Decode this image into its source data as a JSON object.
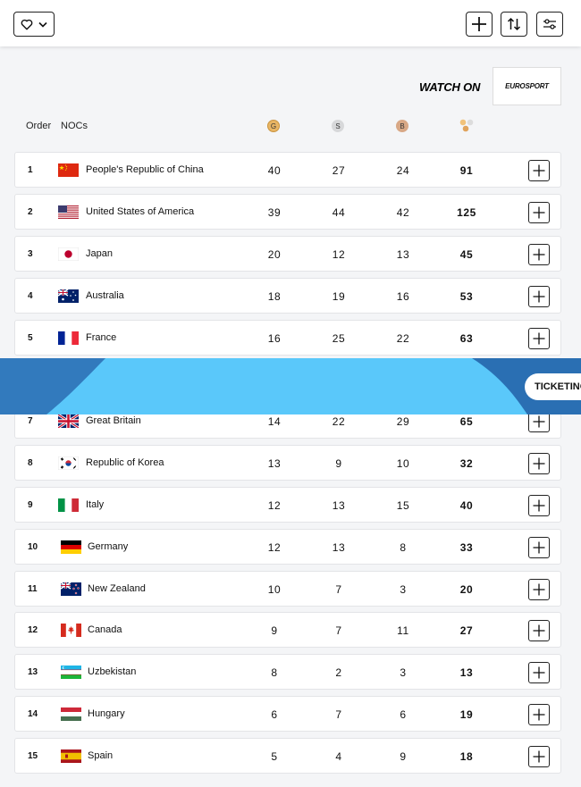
{
  "toolbar": {
    "favorite_icon": "heart-icon",
    "dropdown_icon": "chevron-down-icon",
    "add_icon": "plus-icon",
    "sort_icon": "sort-icon",
    "filter_icon": "sliders-icon"
  },
  "watch_on": {
    "label": "WATCH ON",
    "partner": "EUROSPORT"
  },
  "table_header": {
    "order": "Order",
    "nocs": "NOCs",
    "gold": "G",
    "silver": "S",
    "bronze": "B"
  },
  "banner": {
    "ticketing": "TICKETING"
  },
  "colors": {
    "gold": "#e8b564",
    "silver": "#d7d8da",
    "bronze": "#d8a886",
    "banner_light": "#5ac8fa",
    "banner_dark": "#2a6fb3"
  },
  "rows": [
    {
      "order": "1",
      "name": "People's Republic of China",
      "gold": "40",
      "silver": "27",
      "bronze": "24",
      "total": "91",
      "flag": "cn"
    },
    {
      "order": "2",
      "name": "United States of America",
      "gold": "39",
      "silver": "44",
      "bronze": "42",
      "total": "125",
      "flag": "us"
    },
    {
      "order": "3",
      "name": "Japan",
      "gold": "20",
      "silver": "12",
      "bronze": "13",
      "total": "45",
      "flag": "jp"
    },
    {
      "order": "4",
      "name": "Australia",
      "gold": "18",
      "silver": "19",
      "bronze": "16",
      "total": "53",
      "flag": "au"
    },
    {
      "order": "5",
      "name": "France",
      "gold": "16",
      "silver": "25",
      "bronze": "22",
      "total": "63",
      "flag": "fr"
    },
    {
      "order": "7",
      "name": "Great Britain",
      "gold": "14",
      "silver": "22",
      "bronze": "29",
      "total": "65",
      "flag": "gb"
    },
    {
      "order": "8",
      "name": "Republic of Korea",
      "gold": "13",
      "silver": "9",
      "bronze": "10",
      "total": "32",
      "flag": "kr"
    },
    {
      "order": "9",
      "name": "Italy",
      "gold": "12",
      "silver": "13",
      "bronze": "15",
      "total": "40",
      "flag": "it"
    },
    {
      "order": "10",
      "name": "Germany",
      "gold": "12",
      "silver": "13",
      "bronze": "8",
      "total": "33",
      "flag": "de"
    },
    {
      "order": "11",
      "name": "New Zealand",
      "gold": "10",
      "silver": "7",
      "bronze": "3",
      "total": "20",
      "flag": "nz"
    },
    {
      "order": "12",
      "name": "Canada",
      "gold": "9",
      "silver": "7",
      "bronze": "11",
      "total": "27",
      "flag": "ca"
    },
    {
      "order": "13",
      "name": "Uzbekistan",
      "gold": "8",
      "silver": "2",
      "bronze": "3",
      "total": "13",
      "flag": "uz"
    },
    {
      "order": "14",
      "name": "Hungary",
      "gold": "6",
      "silver": "7",
      "bronze": "6",
      "total": "19",
      "flag": "hu"
    },
    {
      "order": "15",
      "name": "Spain",
      "gold": "5",
      "silver": "4",
      "bronze": "9",
      "total": "18",
      "flag": "es"
    }
  ]
}
